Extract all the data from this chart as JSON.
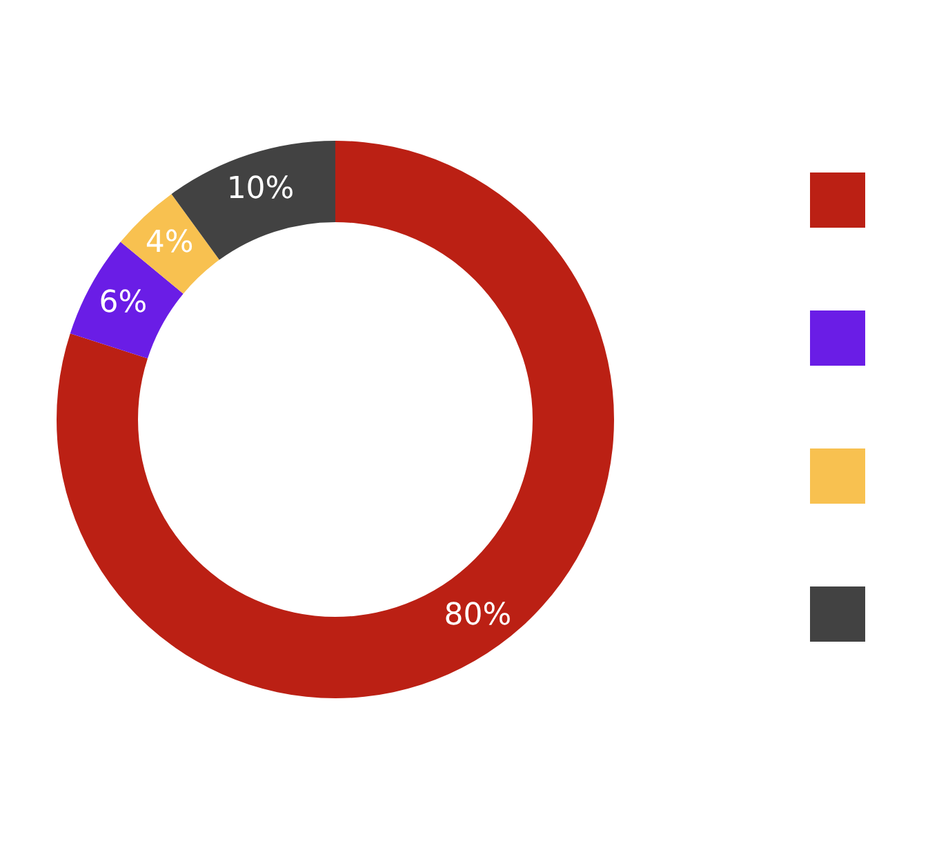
{
  "chart_data": {
    "type": "donut",
    "categories": [
      null,
      null,
      null,
      null
    ],
    "values": [
      80,
      6,
      4,
      10
    ],
    "colors": [
      "#bb2014",
      "#6a1de6",
      "#f8c150",
      "#424242"
    ],
    "value_labels": [
      "80%",
      "6%",
      "4%",
      "10%"
    ]
  }
}
